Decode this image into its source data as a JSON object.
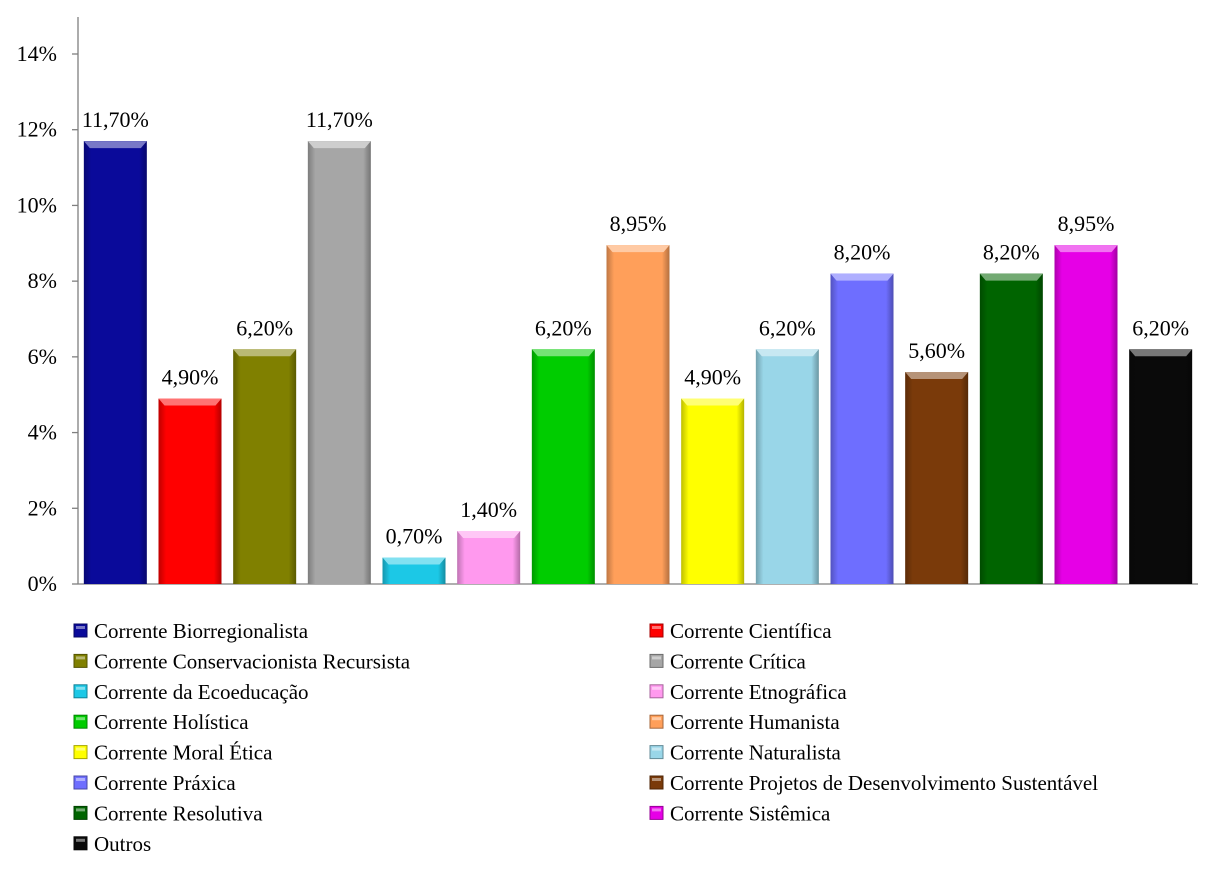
{
  "chart_data": {
    "type": "bar",
    "title": "",
    "xlabel": "",
    "ylabel": "",
    "ylim": [
      0,
      14
    ],
    "yticks": [
      "0%",
      "2%",
      "4%",
      "6%",
      "8%",
      "10%",
      "12%",
      "14%"
    ],
    "grid": false,
    "legend_position": "bottom",
    "categories": [
      "Corrente Biorregionalista",
      "Corrente Científica",
      "Corrente Conservacionista Recursista",
      "Corrente Crítica",
      "Corrente da Ecoeducação",
      "Corrente Etnográfica",
      "Corrente Holística",
      "Corrente Humanista",
      "Corrente Moral Ética",
      "Corrente Naturalista",
      "Corrente Práxica",
      "Corrente Projetos de Desenvolvimento Sustentável",
      "Corrente Resolutiva",
      "Corrente Sistêmica",
      "Outros"
    ],
    "values": [
      11.7,
      4.9,
      6.2,
      11.7,
      0.7,
      1.4,
      6.2,
      8.95,
      4.9,
      6.2,
      8.2,
      5.6,
      8.2,
      8.95,
      6.2
    ],
    "data_labels": [
      "11,70%",
      "4,90%",
      "6,20%",
      "11,70%",
      "0,70%",
      "1,40%",
      "6,20%",
      "8,95%",
      "4,90%",
      "6,20%",
      "8,20%",
      "5,60%",
      "8,20%",
      "8,95%",
      "6,20%"
    ],
    "colors": [
      "#0a0a9a",
      "#ff0000",
      "#808000",
      "#a6a6a6",
      "#1cc8e6",
      "#ff99ee",
      "#00cc00",
      "#ff9f5a",
      "#ffff00",
      "#99d6e8",
      "#6e6eff",
      "#7a3a0a",
      "#006400",
      "#e600e6",
      "#0a0a0a"
    ]
  }
}
